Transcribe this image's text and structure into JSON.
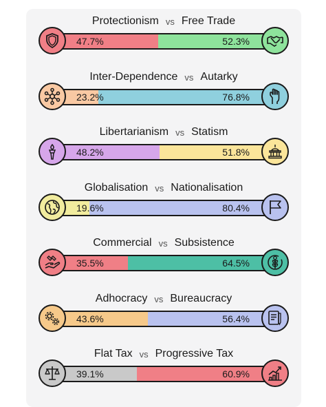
{
  "axes": [
    {
      "left": "Protectionism",
      "vs": "vs",
      "right": "Free Trade",
      "left_pct": "47.7%",
      "right_pct": "52.3%",
      "left_val": 47.7,
      "right_val": 52.3,
      "left_color": "#f07f86",
      "right_color": "#8ee39c",
      "left_icon": "shield-icon",
      "right_icon": "handshake-icon"
    },
    {
      "left": "Inter-Dependence",
      "vs": "vs",
      "right": "Autarky",
      "left_pct": "23.2%",
      "right_pct": "76.8%",
      "left_val": 23.2,
      "right_val": 76.8,
      "left_color": "#f9c9a3",
      "right_color": "#8fd0de",
      "left_icon": "network-icon",
      "right_icon": "fist-icon"
    },
    {
      "left": "Libertarianism",
      "vs": "vs",
      "right": "Statism",
      "left_pct": "48.2%",
      "right_pct": "51.8%",
      "left_val": 48.2,
      "right_val": 51.8,
      "left_color": "#d6a6ea",
      "right_color": "#fbe59a",
      "left_icon": "torch-icon",
      "right_icon": "capitol-icon"
    },
    {
      "left": "Globalisation",
      "vs": "vs",
      "right": "Nationalisation",
      "left_pct": "19.6%",
      "right_pct": "80.4%",
      "left_val": 19.6,
      "right_val": 80.4,
      "left_color": "#f1ec9e",
      "right_color": "#b9c2ef",
      "left_icon": "globe-icon",
      "right_icon": "flag-icon"
    },
    {
      "left": "Commercial",
      "vs": "vs",
      "right": "Subsistence",
      "left_pct": "35.5%",
      "right_pct": "64.5%",
      "left_val": 35.5,
      "right_val": 64.5,
      "left_color": "#f07f86",
      "right_color": "#4dbfa5",
      "left_icon": "trade-hands-icon",
      "right_icon": "wheat-icon"
    },
    {
      "left": "Adhocracy",
      "vs": "vs",
      "right": "Bureaucracy",
      "left_pct": "43.6%",
      "right_pct": "56.4%",
      "left_val": 43.6,
      "right_val": 56.4,
      "left_color": "#f6c98a",
      "right_color": "#b9c2ef",
      "left_icon": "gears-icon",
      "right_icon": "document-icon"
    },
    {
      "left": "Flat Tax",
      "vs": "vs",
      "right": "Progressive Tax",
      "left_pct": "39.1%",
      "right_pct": "60.9%",
      "left_val": 39.1,
      "right_val": 60.9,
      "left_color": "#c9c9c9",
      "right_color": "#f07f86",
      "left_icon": "scales-icon",
      "right_icon": "growth-chart-icon"
    }
  ]
}
